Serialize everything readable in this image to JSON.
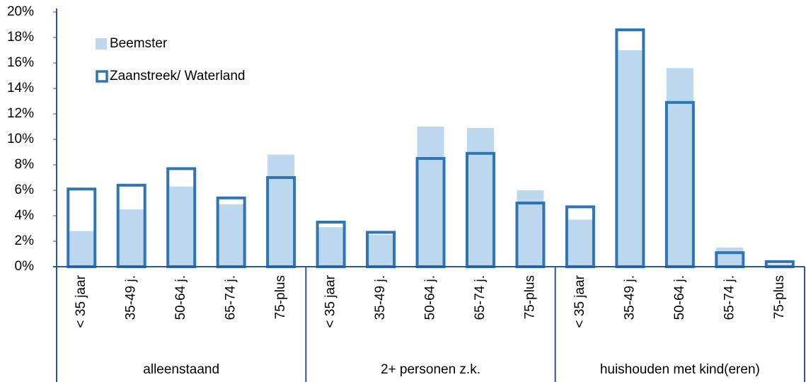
{
  "chart_data": {
    "type": "bar",
    "ylim": [
      0,
      20
    ],
    "yticks": [
      {
        "value": 0,
        "label": "0%"
      },
      {
        "value": 2,
        "label": "2%"
      },
      {
        "value": 4,
        "label": "4%"
      },
      {
        "value": 6,
        "label": "6%"
      },
      {
        "value": 8,
        "label": "8%"
      },
      {
        "value": 10,
        "label": "10%"
      },
      {
        "value": 12,
        "label": "12%"
      },
      {
        "value": 14,
        "label": "14%"
      },
      {
        "value": 16,
        "label": "16%"
      },
      {
        "value": 18,
        "label": "18%"
      },
      {
        "value": 20,
        "label": "20%"
      }
    ],
    "grid": false,
    "legend": "upper left",
    "groups": [
      {
        "name": "alleenstaand",
        "categories": [
          "< 35 jaar",
          "35-49 j.",
          "50-64 j.",
          "65-74 j.",
          "75-plus"
        ]
      },
      {
        "name": "2+ personen z.k.",
        "categories": [
          "< 35 jaar",
          "35-49 j.",
          "50-64 j.",
          "65-74 j.",
          "75-plus"
        ]
      },
      {
        "name": "huishouden met kind(eren)",
        "categories": [
          "< 35 jaar",
          "35-49 j.",
          "50-64 j.",
          "65-74 j.",
          "75-plus"
        ]
      }
    ],
    "series": [
      {
        "name": "Beemster",
        "color": "#bdd7ee",
        "style": "filled",
        "values": [
          2.8,
          4.5,
          6.3,
          4.9,
          8.8,
          3.1,
          2.5,
          11.0,
          10.9,
          6.0,
          3.7,
          17.0,
          15.6,
          1.5,
          0.2
        ]
      },
      {
        "name": "Zaanstreek/ Waterland",
        "color": "#2e75b6",
        "style": "outline",
        "values": [
          6.1,
          6.4,
          7.7,
          5.4,
          7.0,
          3.5,
          2.7,
          8.5,
          8.9,
          5.0,
          4.7,
          18.6,
          12.9,
          1.1,
          0.4
        ]
      }
    ]
  }
}
